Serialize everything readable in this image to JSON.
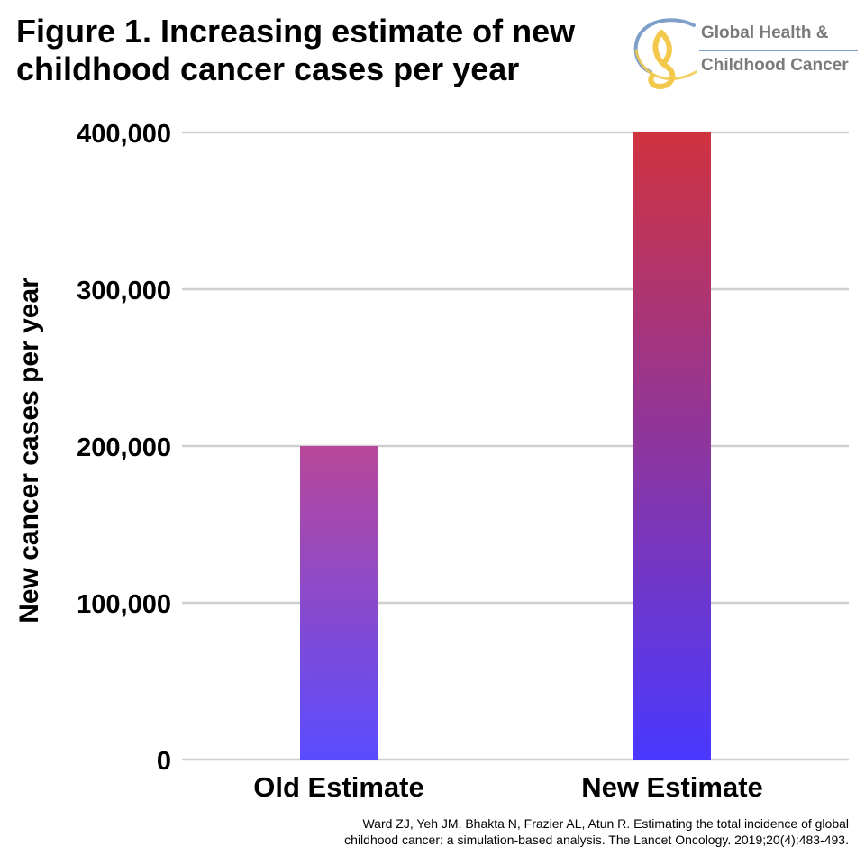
{
  "title": {
    "line1": "Figure 1. Increasing estimate of new",
    "line2": "childhood cancer cases per year"
  },
  "logo": {
    "line1": "Global Health &",
    "line2": "Childhood Cancer",
    "icon": "ribbon-logo-icon"
  },
  "colors": {
    "bar_top_old": "#b8489a",
    "bar_bottom_old": "#5a4cff",
    "bar_top_new": "#d0333f",
    "bar_bottom_new": "#4a38ff",
    "grid": "#cfcfcf",
    "logo_blue": "#7d9fc9",
    "logo_gold": "#f2c94c"
  },
  "chart_data": {
    "type": "bar",
    "categories": [
      "Old Estimate",
      "New Estimate"
    ],
    "values": [
      200000,
      400000
    ],
    "ylabel": "New cancer cases per year",
    "xlabel": "",
    "ylim": [
      0,
      400000
    ],
    "yticks": [
      0,
      100000,
      200000,
      300000,
      400000
    ],
    "ytick_labels": [
      "0",
      "100,000",
      "200,000",
      "300,000",
      "400,000"
    ],
    "grid": true
  },
  "citation": {
    "line1": "Ward ZJ, Yeh JM, Bhakta N, Frazier AL, Atun R. Estimating the total incidence of global",
    "line2": "childhood cancer: a simulation-based analysis. The Lancet Oncology. 2019;20(4):483-493."
  }
}
